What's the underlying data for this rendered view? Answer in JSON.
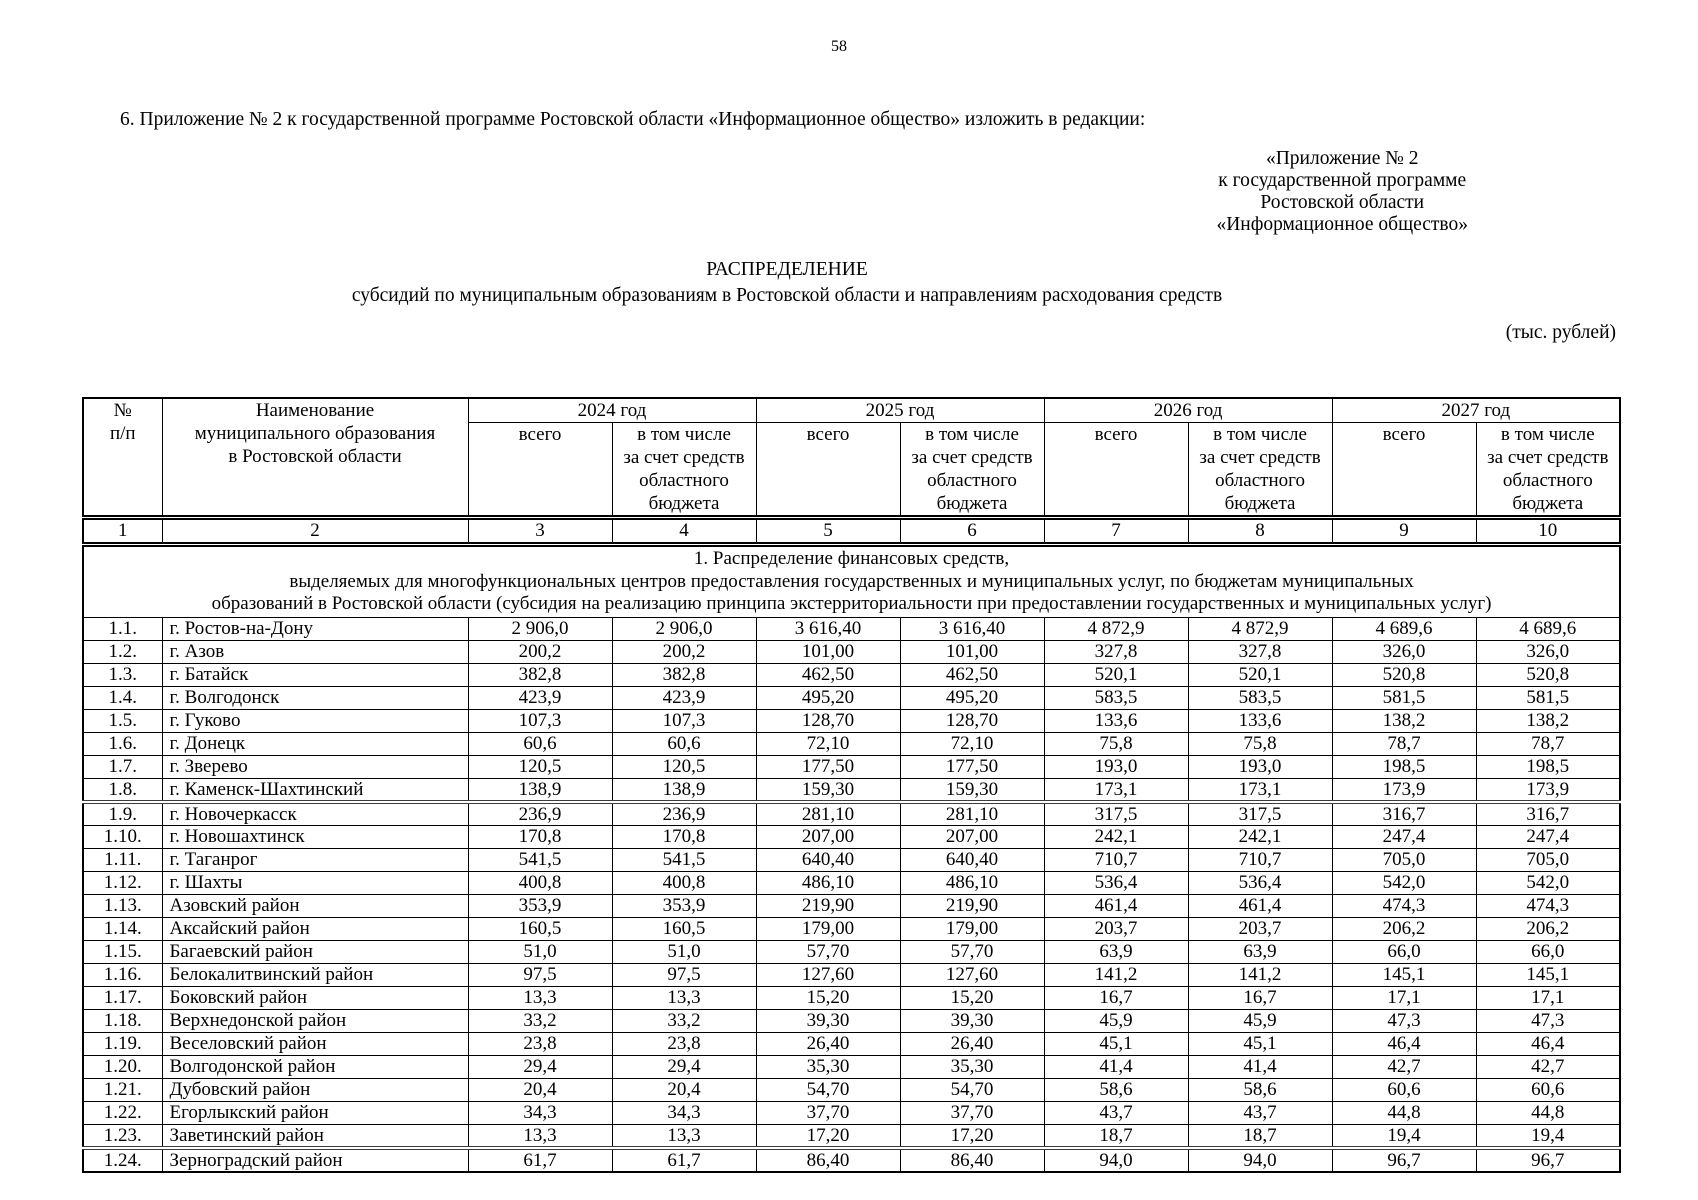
{
  "page": {
    "number": "58",
    "intro": "6. Приложение № 2 к государственной программе Ростовской области «Информационное общество» изложить в редакции:",
    "right_block": "«Приложение № 2\nк государственной программе\nРостовской области\n«Информационное общество»",
    "title": "РАСПРЕДЕЛЕНИЕ",
    "subtitle": "субсидий по муниципальным образованиям в Ростовской области и направлениям расходования средств",
    "units_note": "(тыс. рублей)"
  },
  "table": {
    "header": {
      "num": "№\nп/п",
      "name": "Наименование\nмуниципального образования\nв Ростовской области",
      "years": [
        "2024 год",
        "2025 год",
        "2026 год",
        "2027 год"
      ],
      "sub_total": "всего",
      "sub_included": "в том числе\nза счет средств\nобластного\nбюджета"
    },
    "col_nums": [
      "1",
      "2",
      "3",
      "4",
      "5",
      "6",
      "7",
      "8",
      "9",
      "10"
    ],
    "section_title": "1. Распределение финансовых средств,\nвыделяемых для многофункциональных центров предоставления государственных и муниципальных услуг, по бюджетам муниципальных\nобразований в Ростовской области (субсидия на реализацию принципа экстерриториальности при предоставлении государственных и муниципальных услуг)",
    "rows": [
      {
        "num": "1.1.",
        "name": "г. Ростов-на-Дону",
        "values": [
          "2 906,0",
          "2 906,0",
          "3 616,40",
          "3 616,40",
          "4 872,9",
          "4 872,9",
          "4 689,6",
          "4 689,6"
        ]
      },
      {
        "num": "1.2.",
        "name": "г. Азов",
        "values": [
          "200,2",
          "200,2",
          "101,00",
          "101,00",
          "327,8",
          "327,8",
          "326,0",
          "326,0"
        ]
      },
      {
        "num": "1.3.",
        "name": "г. Батайск",
        "values": [
          "382,8",
          "382,8",
          "462,50",
          "462,50",
          "520,1",
          "520,1",
          "520,8",
          "520,8"
        ]
      },
      {
        "num": "1.4.",
        "name": "г. Волгодонск",
        "values": [
          "423,9",
          "423,9",
          "495,20",
          "495,20",
          "583,5",
          "583,5",
          "581,5",
          "581,5"
        ]
      },
      {
        "num": "1.5.",
        "name": "г. Гуково",
        "values": [
          "107,3",
          "107,3",
          "128,70",
          "128,70",
          "133,6",
          "133,6",
          "138,2",
          "138,2"
        ]
      },
      {
        "num": "1.6.",
        "name": "г. Донецк",
        "values": [
          "60,6",
          "60,6",
          "72,10",
          "72,10",
          "75,8",
          "75,8",
          "78,7",
          "78,7"
        ]
      },
      {
        "num": "1.7.",
        "name": "г. Зверево",
        "values": [
          "120,5",
          "120,5",
          "177,50",
          "177,50",
          "193,0",
          "193,0",
          "198,5",
          "198,5"
        ]
      },
      {
        "num": "1.8.",
        "name": "г. Каменск-Шахтинский",
        "values": [
          "138,9",
          "138,9",
          "159,30",
          "159,30",
          "173,1",
          "173,1",
          "173,9",
          "173,9"
        ]
      },
      {
        "num": "1.9.",
        "name": "г. Новочеркасск",
        "values": [
          "236,9",
          "236,9",
          "281,10",
          "281,10",
          "317,5",
          "317,5",
          "316,7",
          "316,7"
        ]
      },
      {
        "num": "1.10.",
        "name": "г. Новошахтинск",
        "values": [
          "170,8",
          "170,8",
          "207,00",
          "207,00",
          "242,1",
          "242,1",
          "247,4",
          "247,4"
        ]
      },
      {
        "num": "1.11.",
        "name": "г. Таганрог",
        "values": [
          "541,5",
          "541,5",
          "640,40",
          "640,40",
          "710,7",
          "710,7",
          "705,0",
          "705,0"
        ]
      },
      {
        "num": "1.12.",
        "name": "г. Шахты",
        "values": [
          "400,8",
          "400,8",
          "486,10",
          "486,10",
          "536,4",
          "536,4",
          "542,0",
          "542,0"
        ]
      },
      {
        "num": "1.13.",
        "name": "Азовский район",
        "values": [
          "353,9",
          "353,9",
          "219,90",
          "219,90",
          "461,4",
          "461,4",
          "474,3",
          "474,3"
        ]
      },
      {
        "num": "1.14.",
        "name": "Аксайский район",
        "values": [
          "160,5",
          "160,5",
          "179,00",
          "179,00",
          "203,7",
          "203,7",
          "206,2",
          "206,2"
        ]
      },
      {
        "num": "1.15.",
        "name": "Багаевский район",
        "values": [
          "51,0",
          "51,0",
          "57,70",
          "57,70",
          "63,9",
          "63,9",
          "66,0",
          "66,0"
        ]
      },
      {
        "num": "1.16.",
        "name": "Белокалитвинский район",
        "values": [
          "97,5",
          "97,5",
          "127,60",
          "127,60",
          "141,2",
          "141,2",
          "145,1",
          "145,1"
        ]
      },
      {
        "num": "1.17.",
        "name": "Боковский район",
        "values": [
          "13,3",
          "13,3",
          "15,20",
          "15,20",
          "16,7",
          "16,7",
          "17,1",
          "17,1"
        ]
      },
      {
        "num": "1.18.",
        "name": "Верхнедонской район",
        "values": [
          "33,2",
          "33,2",
          "39,30",
          "39,30",
          "45,9",
          "45,9",
          "47,3",
          "47,3"
        ]
      },
      {
        "num": "1.19.",
        "name": "Веселовский район",
        "values": [
          "23,8",
          "23,8",
          "26,40",
          "26,40",
          "45,1",
          "45,1",
          "46,4",
          "46,4"
        ]
      },
      {
        "num": "1.20.",
        "name": "Волгодонской район",
        "values": [
          "29,4",
          "29,4",
          "35,30",
          "35,30",
          "41,4",
          "41,4",
          "42,7",
          "42,7"
        ]
      },
      {
        "num": "1.21.",
        "name": "Дубовский район",
        "values": [
          "20,4",
          "20,4",
          "54,70",
          "54,70",
          "58,6",
          "58,6",
          "60,6",
          "60,6"
        ]
      },
      {
        "num": "1.22.",
        "name": "Егорлыкский район",
        "values": [
          "34,3",
          "34,3",
          "37,70",
          "37,70",
          "43,7",
          "43,7",
          "44,8",
          "44,8"
        ]
      },
      {
        "num": "1.23.",
        "name": "Заветинский район",
        "values": [
          "13,3",
          "13,3",
          "17,20",
          "17,20",
          "18,7",
          "18,7",
          "19,4",
          "19,4"
        ]
      },
      {
        "num": "1.24.",
        "name": "Зерноградский район",
        "values": [
          "61,7",
          "61,7",
          "86,40",
          "86,40",
          "94,0",
          "94,0",
          "96,7",
          "96,7"
        ]
      }
    ]
  }
}
